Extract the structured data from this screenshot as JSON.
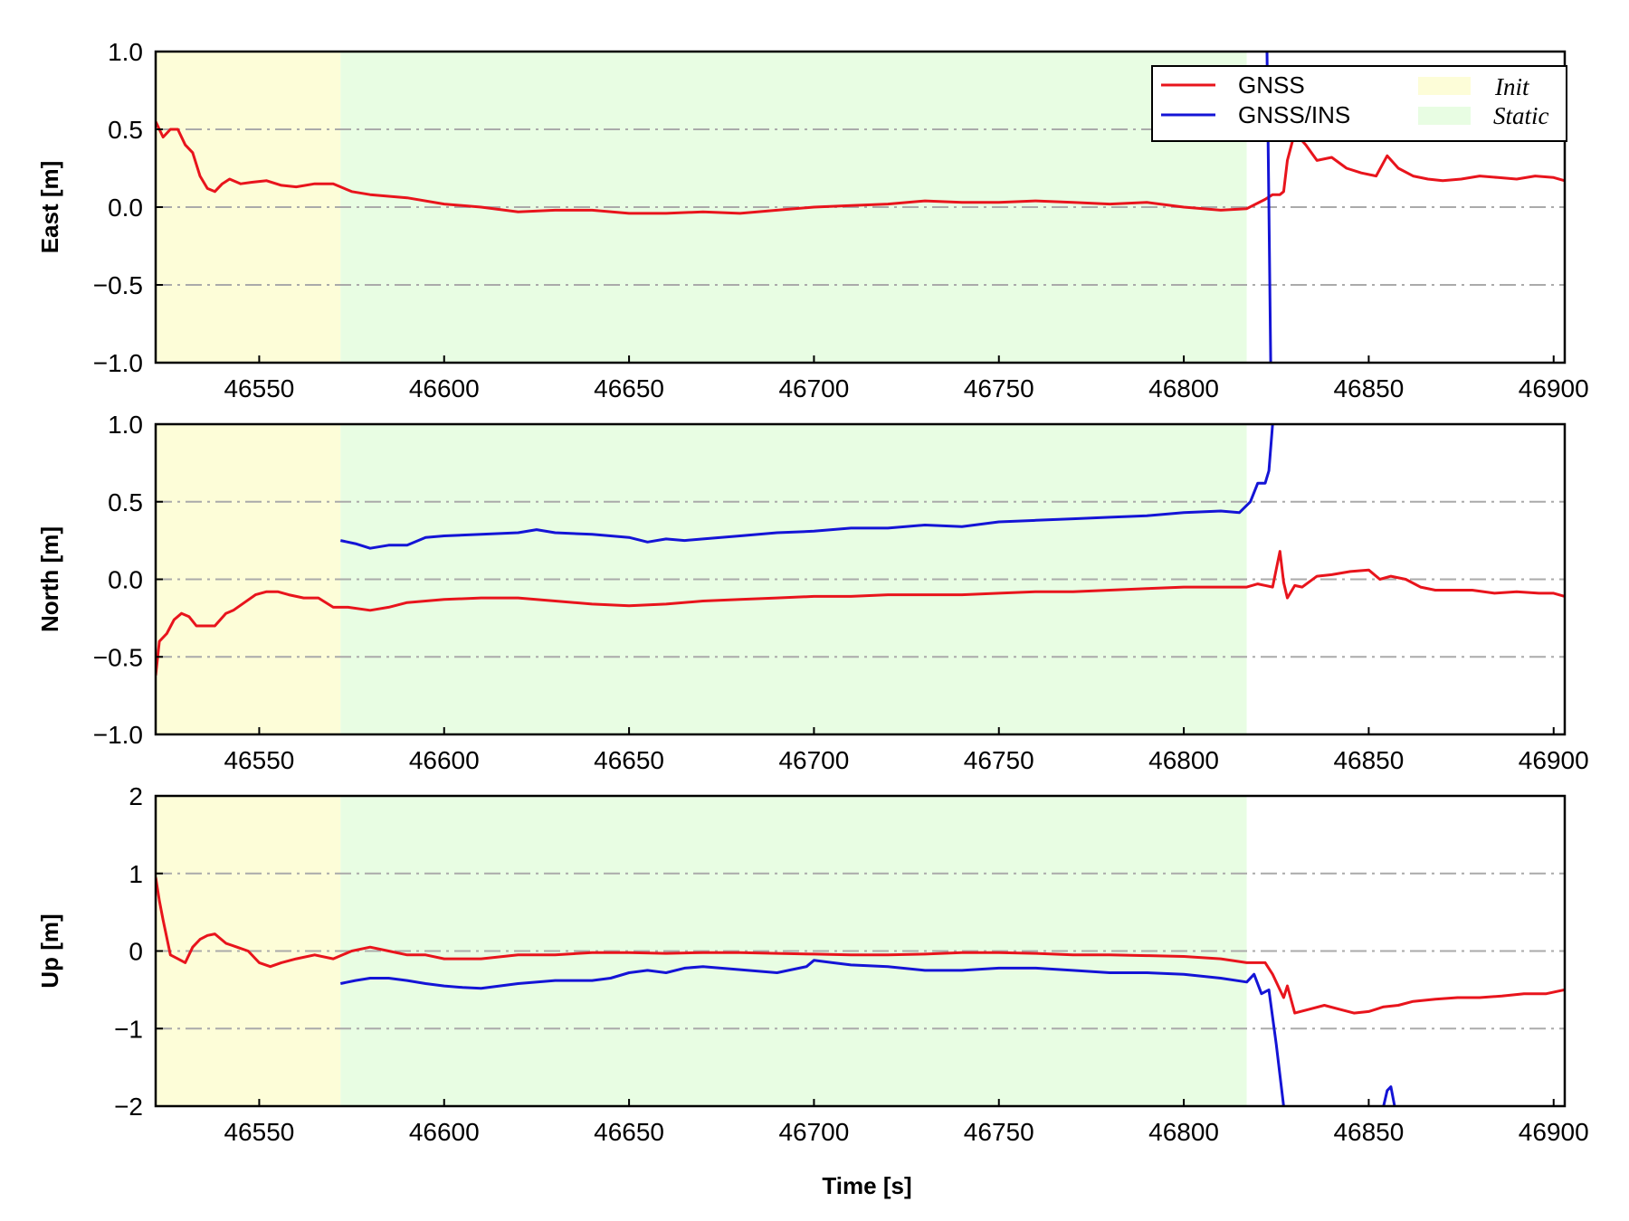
{
  "chart_data": {
    "type": "line",
    "xlabel": "Time [s]",
    "xlim": [
      46522,
      46903
    ],
    "xticks": [
      46550,
      46600,
      46650,
      46700,
      46750,
      46800,
      46850,
      46900
    ],
    "grid": "horizontal dash-dot",
    "colors": {
      "GNSS": "#e8141c",
      "GNSS/INS": "#1414d6",
      "Init": "#fdfdd8",
      "Static": "#e8fde3",
      "grid": "#aaaaaa"
    },
    "legend": {
      "placement": "top-right of first panel",
      "series": [
        "GNSS",
        "GNSS/INS"
      ],
      "regions": [
        "Init",
        "Static"
      ]
    },
    "regions": [
      {
        "name": "Init",
        "x": [
          46522,
          46572
        ]
      },
      {
        "name": "Static",
        "x": [
          46572,
          46817
        ]
      }
    ],
    "panels": [
      {
        "ylabel": "East [m]",
        "ylim": [
          -1.0,
          1.0
        ],
        "yticks": [
          1.0,
          0.5,
          0.0,
          -0.5,
          -1.0
        ],
        "ytick_labels": [
          "1.0",
          "0.5",
          "0.0",
          "−0.5",
          "−1.0"
        ],
        "series": [
          {
            "name": "GNSS",
            "x": [
              46522,
              46524,
              46526,
              46528,
              46530,
              46532,
              46534,
              46536,
              46538,
              46540,
              46542,
              46545,
              46548,
              46552,
              46556,
              46560,
              46565,
              46570,
              46575,
              46580,
              46590,
              46600,
              46610,
              46620,
              46630,
              46640,
              46650,
              46660,
              46670,
              46680,
              46690,
              46700,
              46710,
              46720,
              46730,
              46740,
              46750,
              46760,
              46770,
              46780,
              46790,
              46800,
              46810,
              46817,
              46822,
              46824,
              46826,
              46827,
              46828,
              46830,
              46833,
              46836,
              46840,
              46844,
              46848,
              46852,
              46855,
              46858,
              46862,
              46866,
              46870,
              46875,
              46880,
              46885,
              46890,
              46895,
              46900,
              46903
            ],
            "y": [
              0.55,
              0.45,
              0.5,
              0.5,
              0.4,
              0.35,
              0.2,
              0.12,
              0.1,
              0.15,
              0.18,
              0.15,
              0.16,
              0.17,
              0.14,
              0.13,
              0.15,
              0.15,
              0.1,
              0.08,
              0.06,
              0.02,
              0.0,
              -0.03,
              -0.02,
              -0.02,
              -0.04,
              -0.04,
              -0.03,
              -0.04,
              -0.02,
              0.0,
              0.01,
              0.02,
              0.04,
              0.03,
              0.03,
              0.04,
              0.03,
              0.02,
              0.03,
              0.0,
              -0.02,
              -0.01,
              0.05,
              0.08,
              0.08,
              0.1,
              0.3,
              0.48,
              0.4,
              0.3,
              0.32,
              0.25,
              0.22,
              0.2,
              0.33,
              0.25,
              0.2,
              0.18,
              0.17,
              0.18,
              0.2,
              0.19,
              0.18,
              0.2,
              0.19,
              0.17
            ]
          },
          {
            "name": "GNSS/INS",
            "x": [
              46822.5,
              46823,
              46823.5
            ],
            "y": [
              1.0,
              0.0,
              -1.0
            ]
          }
        ]
      },
      {
        "ylabel": "North [m]",
        "ylim": [
          -1.0,
          1.0
        ],
        "yticks": [
          1.0,
          0.5,
          0.0,
          -0.5,
          -1.0
        ],
        "ytick_labels": [
          "1.0",
          "0.5",
          "0.0",
          "−0.5",
          "−1.0"
        ],
        "series": [
          {
            "name": "GNSS",
            "x": [
              46522,
              46523,
              46525,
              46527,
              46529,
              46531,
              46533,
              46535,
              46538,
              46541,
              46543,
              46546,
              46549,
              46552,
              46555,
              46558,
              46562,
              46566,
              46570,
              46574,
              46580,
              46585,
              46590,
              46600,
              46610,
              46620,
              46630,
              46640,
              46650,
              46660,
              46670,
              46680,
              46690,
              46700,
              46710,
              46720,
              46730,
              46740,
              46750,
              46760,
              46770,
              46780,
              46790,
              46800,
              46810,
              46817,
              46820,
              46824,
              46826,
              46827,
              46828,
              46830,
              46832,
              46836,
              46840,
              46845,
              46850,
              46853,
              46856,
              46860,
              46864,
              46868,
              46872,
              46878,
              46884,
              46890,
              46896,
              46900,
              46903
            ],
            "y": [
              -0.62,
              -0.4,
              -0.35,
              -0.26,
              -0.22,
              -0.24,
              -0.3,
              -0.3,
              -0.3,
              -0.22,
              -0.2,
              -0.15,
              -0.1,
              -0.08,
              -0.08,
              -0.1,
              -0.12,
              -0.12,
              -0.18,
              -0.18,
              -0.2,
              -0.18,
              -0.15,
              -0.13,
              -0.12,
              -0.12,
              -0.14,
              -0.16,
              -0.17,
              -0.16,
              -0.14,
              -0.13,
              -0.12,
              -0.11,
              -0.11,
              -0.1,
              -0.1,
              -0.1,
              -0.09,
              -0.08,
              -0.08,
              -0.07,
              -0.06,
              -0.05,
              -0.05,
              -0.05,
              -0.03,
              -0.05,
              0.18,
              -0.02,
              -0.12,
              -0.04,
              -0.05,
              0.02,
              0.03,
              0.05,
              0.06,
              0.0,
              0.02,
              0.0,
              -0.05,
              -0.07,
              -0.07,
              -0.07,
              -0.09,
              -0.08,
              -0.09,
              -0.09,
              -0.11
            ]
          },
          {
            "name": "GNSS/INS",
            "x": [
              46572,
              46576,
              46580,
              46585,
              46590,
              46595,
              46600,
              46610,
              46620,
              46625,
              46630,
              46640,
              46650,
              46655,
              46660,
              46665,
              46670,
              46680,
              46690,
              46700,
              46710,
              46720,
              46730,
              46740,
              46750,
              46760,
              46770,
              46780,
              46790,
              46800,
              46810,
              46815,
              46818,
              46820,
              46822,
              46823,
              46824
            ],
            "y": [
              0.25,
              0.23,
              0.2,
              0.22,
              0.22,
              0.27,
              0.28,
              0.29,
              0.3,
              0.32,
              0.3,
              0.29,
              0.27,
              0.24,
              0.26,
              0.25,
              0.26,
              0.28,
              0.3,
              0.31,
              0.33,
              0.33,
              0.35,
              0.34,
              0.37,
              0.38,
              0.39,
              0.4,
              0.41,
              0.43,
              0.44,
              0.43,
              0.5,
              0.62,
              0.62,
              0.7,
              1.0
            ]
          }
        ]
      },
      {
        "ylabel": "Up [m]",
        "ylim": [
          -2,
          2
        ],
        "yticks": [
          2,
          1,
          0,
          -1,
          -2
        ],
        "ytick_labels": [
          "2",
          "1",
          "0",
          "−1",
          "−2"
        ],
        "series": [
          {
            "name": "GNSS",
            "x": [
              46522,
              46523,
              46524,
              46526,
              46528,
              46530,
              46532,
              46534,
              46536,
              46538,
              46541,
              46544,
              46547,
              46550,
              46553,
              46556,
              46560,
              46565,
              46570,
              46575,
              46580,
              46585,
              46590,
              46595,
              46600,
              46605,
              46610,
              46620,
              46630,
              46640,
              46650,
              46660,
              46670,
              46680,
              46690,
              46700,
              46710,
              46720,
              46730,
              46740,
              46750,
              46760,
              46770,
              46780,
              46790,
              46800,
              46810,
              46817,
              46820,
              46822,
              46824,
              46826,
              46827,
              46828,
              46830,
              46834,
              46838,
              46842,
              46846,
              46850,
              46854,
              46858,
              46862,
              46868,
              46874,
              46880,
              46886,
              46892,
              46898,
              46903
            ],
            "y": [
              0.95,
              0.65,
              0.4,
              -0.05,
              -0.1,
              -0.15,
              0.05,
              0.15,
              0.2,
              0.22,
              0.1,
              0.05,
              0.0,
              -0.15,
              -0.2,
              -0.15,
              -0.1,
              -0.05,
              -0.1,
              0.0,
              0.05,
              0.0,
              -0.05,
              -0.05,
              -0.1,
              -0.1,
              -0.1,
              -0.05,
              -0.05,
              -0.02,
              -0.02,
              -0.03,
              -0.02,
              -0.02,
              -0.03,
              -0.04,
              -0.05,
              -0.05,
              -0.04,
              -0.02,
              -0.02,
              -0.03,
              -0.05,
              -0.05,
              -0.06,
              -0.07,
              -0.1,
              -0.15,
              -0.15,
              -0.15,
              -0.3,
              -0.5,
              -0.6,
              -0.45,
              -0.8,
              -0.75,
              -0.7,
              -0.75,
              -0.8,
              -0.78,
              -0.72,
              -0.7,
              -0.65,
              -0.62,
              -0.6,
              -0.6,
              -0.58,
              -0.55,
              -0.55,
              -0.5
            ]
          },
          {
            "name": "GNSS/INS",
            "x": [
              46572,
              46576,
              46580,
              46585,
              46590,
              46595,
              46600,
              46605,
              46610,
              46620,
              46630,
              46640,
              46645,
              46650,
              46655,
              46660,
              46665,
              46670,
              46680,
              46690,
              46698,
              46700,
              46705,
              46710,
              46720,
              46730,
              46740,
              46750,
              46760,
              46770,
              46780,
              46790,
              46800,
              46810,
              46817,
              46819,
              46821,
              46823,
              46825,
              46827
            ],
            "y": [
              -0.42,
              -0.38,
              -0.35,
              -0.35,
              -0.38,
              -0.42,
              -0.45,
              -0.47,
              -0.48,
              -0.42,
              -0.38,
              -0.38,
              -0.35,
              -0.28,
              -0.25,
              -0.28,
              -0.22,
              -0.2,
              -0.24,
              -0.28,
              -0.2,
              -0.12,
              -0.15,
              -0.18,
              -0.2,
              -0.25,
              -0.25,
              -0.22,
              -0.22,
              -0.25,
              -0.28,
              -0.28,
              -0.3,
              -0.35,
              -0.4,
              -0.3,
              -0.55,
              -0.5,
              -1.2,
              -2.0
            ]
          },
          {
            "name": "GNSS/INS",
            "x": [
              46854,
              46855,
              46856,
              46857
            ],
            "y": [
              -2.0,
              -1.8,
              -1.75,
              -2.0
            ]
          }
        ]
      }
    ]
  }
}
